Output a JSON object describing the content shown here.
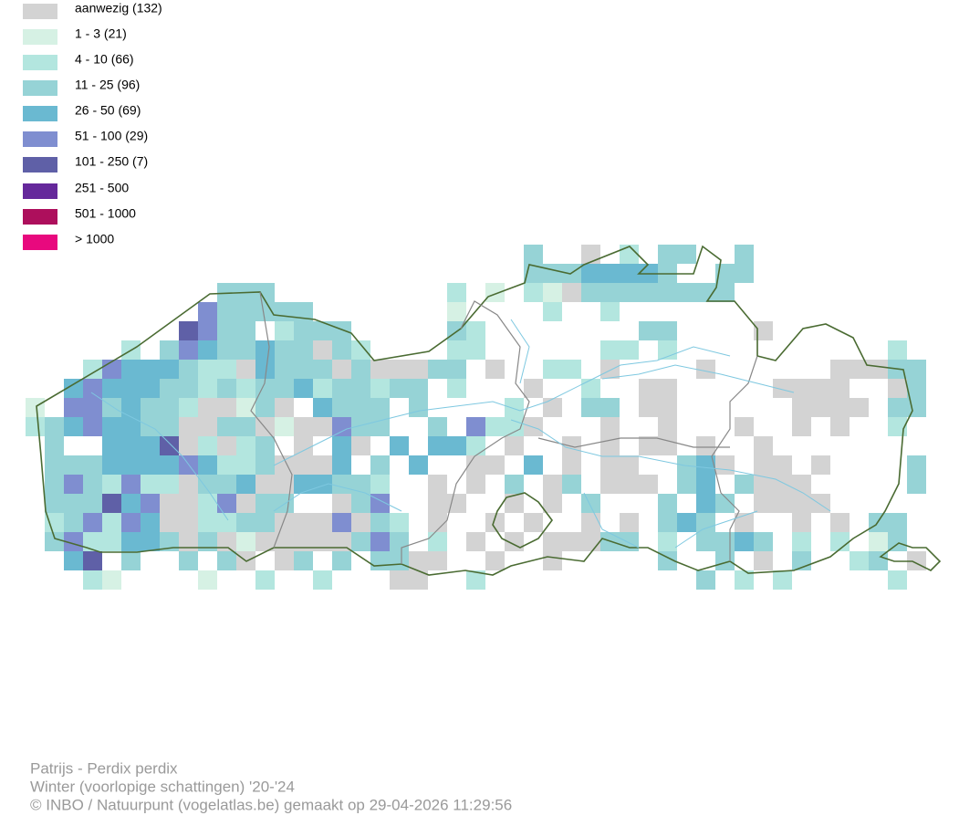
{
  "legend": [
    {
      "label": "aanwezig (132)",
      "color": "#d3d3d3"
    },
    {
      "label": "1 - 3 (21)",
      "color": "#d6f1e4"
    },
    {
      "label": "4 - 10 (66)",
      "color": "#b3e6df"
    },
    {
      "label": "11 - 25 (96)",
      "color": "#96d3d6"
    },
    {
      "label": "26 - 50 (69)",
      "color": "#6ab9d1"
    },
    {
      "label": "51 - 100 (29)",
      "color": "#7f8ed0"
    },
    {
      "label": "101 - 250 (7)",
      "color": "#5f60a7"
    },
    {
      "label": "251 - 500",
      "color": "#65289b"
    },
    {
      "label": "501 - 1000",
      "color": "#ad0f5c"
    },
    {
      "label": "> 1000",
      "color": "#e8097e"
    }
  ],
  "footer": {
    "species": "Patrijs - Perdix perdix",
    "period": "Winter (voorlopige schattingen) '20-'24",
    "credit": "© INBO / Natuurpunt (vogelatlas.be) gemaakt op 29-04-2026 11:29:56"
  }
}
